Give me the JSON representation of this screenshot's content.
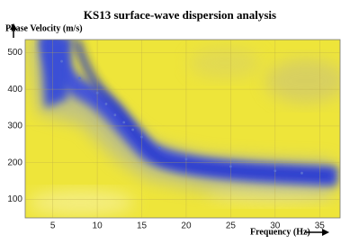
{
  "chart_data": {
    "type": "scatter",
    "title": "KS13 surface-wave dispersion analysis",
    "x_label": "Frequency (Hz)",
    "y_label": "Phase Velocity (m/s)",
    "x": [
      6,
      8,
      10,
      11,
      12,
      13,
      14,
      15,
      17,
      20,
      25,
      30,
      33
    ],
    "values": [
      476,
      430,
      390,
      360,
      330,
      310,
      290,
      270,
      240,
      210,
      190,
      178,
      172
    ],
    "color": "#5a6fd0",
    "xlim": [
      1.9,
      37.3
    ],
    "xticks": [
      5,
      10,
      15,
      20,
      25,
      30,
      35
    ],
    "ylim": [
      50,
      535
    ],
    "yticks": [
      100,
      200,
      300,
      400,
      500
    ],
    "grid": true
  }
}
